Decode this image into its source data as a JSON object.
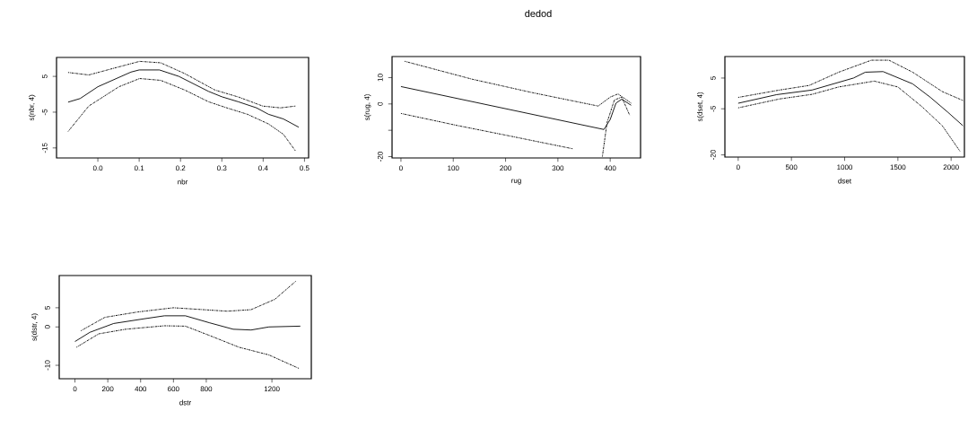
{
  "chart_data": [
    {
      "type": "line",
      "xlabel": "nbr",
      "ylabel": "s(nbr, 4)",
      "xlim": [
        -0.1,
        0.51
      ],
      "ylim": [
        -17.8,
        10.3
      ],
      "xticks": [
        {
          "value": 0,
          "label": "0.0"
        },
        0.1,
        0.2,
        0.3,
        0.4,
        0.5
      ],
      "yticks": [
        -15,
        -5,
        5
      ],
      "marker": "none",
      "grid": false,
      "series": [
        {
          "color": "#000000",
          "line_style": "solid",
          "x": [
            -0.072,
            -0.043,
            0.0,
            0.08,
            0.1,
            0.149,
            0.196,
            0.268,
            0.3,
            0.34,
            0.384,
            0.413,
            0.449,
            0.486
          ],
          "values": [
            -2.2,
            -1.2,
            2.1,
            6.2,
            6.8,
            6.8,
            5,
            0.8,
            -0.7,
            -2.1,
            -3.8,
            -5.6,
            -6.9,
            -9.2
          ]
        },
        {
          "color": "#000000",
          "line_style": "dashed",
          "x": [
            -0.072,
            -0.022,
            0.036,
            0.101,
            0.152,
            0.21,
            0.283,
            0.341,
            0.399,
            0.442,
            0.478
          ],
          "values": [
            6.1,
            5.4,
            7.2,
            9.2,
            8.8,
            5.8,
            1.2,
            -0.8,
            -3.3,
            -3.8,
            -3.3
          ]
        },
        {
          "color": "#000000",
          "line_style": "dashed",
          "x": [
            -0.072,
            -0.022,
            0.051,
            0.101,
            0.152,
            0.21,
            0.268,
            0.312,
            0.362,
            0.413,
            0.449,
            0.478
          ],
          "values": [
            -10.4,
            -3.3,
            2.1,
            4.4,
            3.9,
            1.2,
            -2.1,
            -3.8,
            -5.6,
            -8.3,
            -11.2,
            -15.8
          ]
        }
      ]
    },
    {
      "type": "line",
      "title": "dedod",
      "xlabel": "rug",
      "ylabel": "s(rug, 4)",
      "xlim": [
        -17,
        458
      ],
      "ylim": [
        -20.5,
        18
      ],
      "xticks": [
        0,
        100,
        200,
        300,
        400
      ],
      "yticks": [
        -20,
        {
          "value": -10,
          "label": null
        },
        0,
        10
      ],
      "marker": "none",
      "grid": false,
      "series": [
        {
          "color": "#000000",
          "line_style": "solid",
          "x": [
            0,
            388,
            400,
            411,
            422,
            440
          ],
          "values": [
            6.6,
            -9.7,
            -5.9,
            0.3,
            1.8,
            -0.5
          ]
        },
        {
          "color": "#000000",
          "line_style": "dashed",
          "x": [
            7,
            136,
            251,
            377,
            400,
            415,
            440
          ],
          "values": [
            16.2,
            9.4,
            4.3,
            -0.8,
            2.6,
            3.8,
            0.3
          ]
        },
        {
          "color": "#000000",
          "line_style": "dashed",
          "x": [
            0,
            108,
            194,
            328,
            355,
            385,
            394,
            408,
            422,
            437
          ],
          "values": [
            -3.6,
            -8.2,
            -11.6,
            -17,
            null,
            -20,
            -7,
            1.5,
            2.6,
            -4.2
          ]
        }
      ]
    },
    {
      "type": "line",
      "xlabel": "dset",
      "ylabel": "s(dset, 4)",
      "xlim": [
        -125,
        2125
      ],
      "ylim": [
        -20.7,
        12
      ],
      "xticks": [
        0,
        500,
        1000,
        1500,
        2000
      ],
      "yticks": [
        -20,
        -5,
        5
      ],
      "marker": "none",
      "grid": false,
      "series": [
        {
          "color": "#000000",
          "line_style": "solid",
          "x": [
            0,
            361,
            694,
            1083,
            1194,
            1361,
            1639,
            1806,
            1972,
            2111
          ],
          "values": [
            -3.2,
            -0.4,
            1.1,
            5,
            6.9,
            7.1,
            3.1,
            -1.3,
            -6.2,
            -10.5
          ]
        },
        {
          "color": "#000000",
          "line_style": "dashed",
          "x": [
            0,
            389,
            667,
            944,
            1250,
            1417,
            1639,
            1917,
            2111
          ],
          "values": [
            -1.3,
            1.1,
            2.6,
            6.9,
            10.8,
            10.8,
            6.9,
            0.6,
            -2.3
          ]
        },
        {
          "color": "#000000",
          "line_style": "dashed",
          "x": [
            0,
            389,
            694,
            944,
            1278,
            1500,
            1722,
            1917,
            2083
          ],
          "values": [
            -4.7,
            -1.8,
            -0.3,
            2.1,
            4,
            2.1,
            -4.2,
            -10.5,
            -18.8
          ]
        }
      ]
    },
    {
      "type": "line",
      "xlabel": "dstr",
      "ylabel": "s(dstr, 4)",
      "xlim": [
        -96,
        1440
      ],
      "ylim": [
        -13.5,
        13.4
      ],
      "xticks": [
        0,
        200,
        400,
        600,
        800,
        1200
      ],
      "yticks": [
        -10,
        0,
        5
      ],
      "marker": "none",
      "grid": false,
      "series": [
        {
          "color": "#000000",
          "line_style": "solid",
          "x": [
            0,
            91,
            236,
            418,
            545,
            673,
            818,
            964,
            1073,
            1182,
            1373
          ],
          "values": [
            -3.8,
            -1.4,
            0.9,
            2.1,
            2.9,
            2.9,
            1.1,
            -0.6,
            -0.8,
            0,
            0.2
          ]
        },
        {
          "color": "#000000",
          "line_style": "dashed",
          "x": [
            36,
            182,
            382,
            600,
            782,
            927,
            1073,
            1218,
            1345
          ],
          "values": [
            -1.0,
            2.5,
            3.9,
            5,
            4.5,
            4.1,
            4.5,
            7.2,
            11.9
          ]
        },
        {
          "color": "#000000",
          "line_style": "dashed",
          "x": [
            9,
            145,
            309,
            545,
            673,
            818,
            1000,
            1182,
            1364
          ],
          "values": [
            -5.3,
            -1.8,
            -0.6,
            0.3,
            0.2,
            -2.2,
            -5.3,
            -7.3,
            -10.8
          ]
        }
      ]
    }
  ]
}
